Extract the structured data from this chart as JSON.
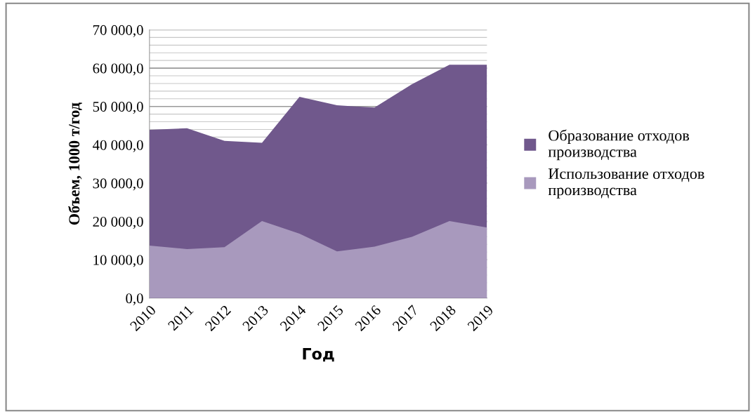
{
  "chart_data": {
    "type": "area",
    "xlabel": "Год",
    "ylabel": "Объем, 1000 т/год",
    "categories": [
      "2010",
      "2011",
      "2012",
      "2013",
      "2014",
      "2015",
      "2016",
      "2017",
      "2018",
      "2019"
    ],
    "series": [
      {
        "name": "Образование отходов производства",
        "color": "#70588c",
        "values": [
          43900,
          44300,
          41000,
          40500,
          52500,
          50300,
          49700,
          55800,
          60900,
          60900
        ]
      },
      {
        "name": "Использование отходов производства",
        "color": "#a899bd",
        "values": [
          13700,
          12800,
          13300,
          20100,
          16800,
          12200,
          13400,
          16000,
          20100,
          18400
        ]
      }
    ],
    "ylim": [
      0,
      70000
    ],
    "yticks": [
      {
        "value": 0,
        "label": "0,0"
      },
      {
        "value": 10000,
        "label": "10 000,0"
      },
      {
        "value": 20000,
        "label": "20 000,0"
      },
      {
        "value": 30000,
        "label": "30 000,0"
      },
      {
        "value": 40000,
        "label": "40 000,0"
      },
      {
        "value": 50000,
        "label": "50 000,0"
      },
      {
        "value": 60000,
        "label": "60 000,0"
      },
      {
        "value": 70000,
        "label": "70 000,0"
      }
    ],
    "grid": "y",
    "legend": "right"
  }
}
